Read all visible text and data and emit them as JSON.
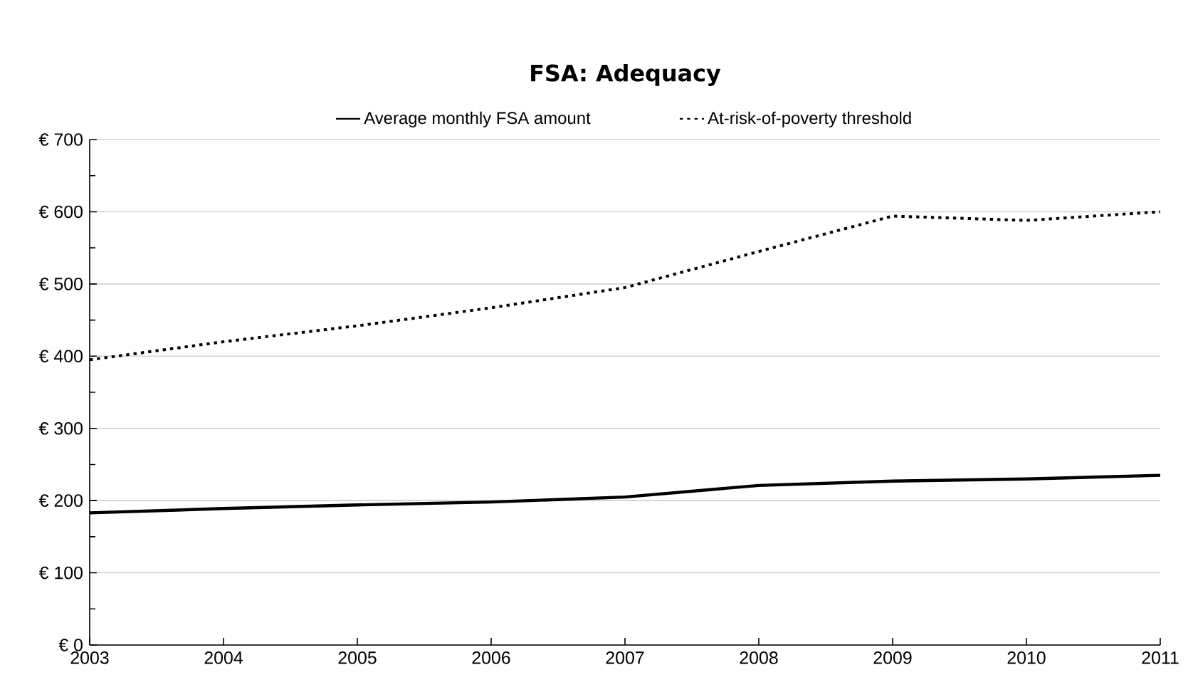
{
  "chart_data": {
    "type": "line",
    "title": "FSA: Adequacy",
    "x": [
      2003,
      2004,
      2005,
      2006,
      2007,
      2008,
      2009,
      2010,
      2011
    ],
    "series": [
      {
        "name": "Average monthly FSA amount",
        "color": "#000000",
        "line_style": "solid",
        "values": [
          183,
          189,
          194,
          198,
          205,
          221,
          227,
          230,
          235
        ]
      },
      {
        "name": "At-risk-of-poverty threshold",
        "color": "#000000",
        "line_style": "dotted",
        "values": [
          395,
          420,
          442,
          467,
          495,
          545,
          594,
          588,
          600
        ]
      }
    ],
    "xlim": [
      2003,
      2011
    ],
    "xticks": [
      2003,
      2004,
      2005,
      2006,
      2007,
      2008,
      2009,
      2010,
      2011
    ],
    "ylim": [
      0,
      700
    ],
    "yticks": [
      {
        "value": 0,
        "label": "€ 0"
      },
      {
        "value": 100,
        "label": "€ 100"
      },
      {
        "value": 200,
        "label": "€ 200"
      },
      {
        "value": 300,
        "label": "€ 300"
      },
      {
        "value": 400,
        "label": "€ 400"
      },
      {
        "value": 500,
        "label": "€ 500"
      },
      {
        "value": 600,
        "label": "€ 600"
      },
      {
        "value": 700,
        "label": "€ 700"
      }
    ],
    "grid": "y",
    "legend": "top",
    "marker": "none"
  }
}
